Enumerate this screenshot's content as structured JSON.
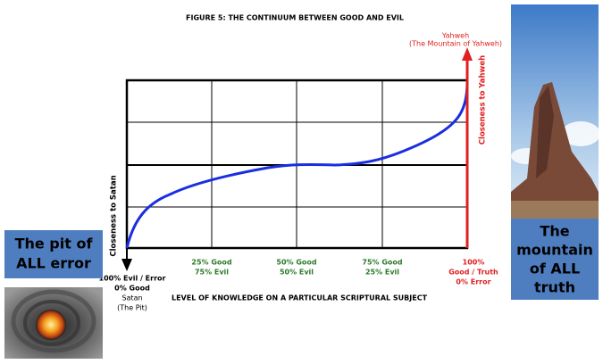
{
  "title": "FIGURE 5: THE CONTINUUM BETWEEN GOOD AND EVIL",
  "top_label": {
    "line1": "Yahweh",
    "line2": "(The Mountain of Yahweh)"
  },
  "right_axis_label": "Closeness to Yahweh",
  "left_axis_label": "Closeness to Satan",
  "bottom_labels": [
    {
      "lines": [
        "100% Evil / Error",
        "0% Good",
        "Satan",
        "(The Pit)"
      ]
    },
    {
      "lines": [
        "25% Good",
        "75% Evil"
      ]
    },
    {
      "lines": [
        "50% Good",
        "50% Evil"
      ]
    },
    {
      "lines": [
        "75% Good",
        "25% Evil"
      ]
    },
    {
      "lines": [
        "100%",
        "Good / Truth",
        "0% Error"
      ]
    }
  ],
  "x_axis_label": "LEVEL OF KNOWLEDGE ON A PARTICULAR SCRIPTURAL SUBJECT",
  "left_box": {
    "lines": [
      "The pit of",
      "ALL error"
    ]
  },
  "right_box": {
    "lines": [
      "The",
      "mountain",
      "of ALL",
      "truth"
    ]
  }
}
